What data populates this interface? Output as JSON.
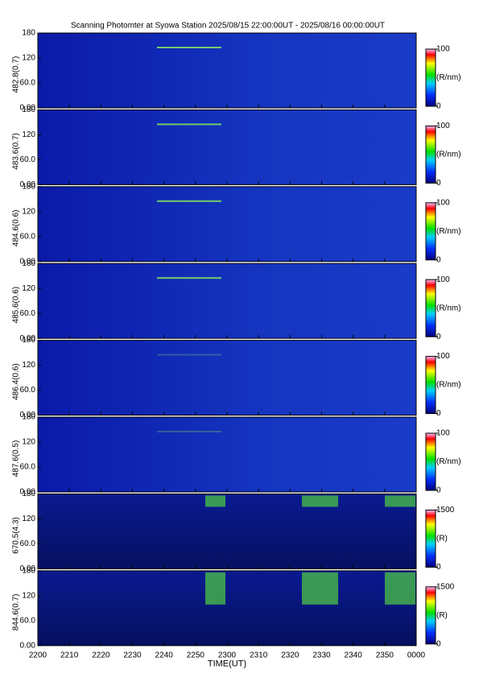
{
  "chart_data": {
    "type": "keogram",
    "title": "Scanning Photomter at Syowa Station 2025/08/15 22:00:00UT - 2025/08/16 00:00:00UT",
    "xlabel": "TIME(UT)",
    "xticks": [
      "2200",
      "2210",
      "2220",
      "2230",
      "2240",
      "2250",
      "2300",
      "2310",
      "2320",
      "2330",
      "2340",
      "2350",
      "0000"
    ],
    "ylim": [
      0,
      180
    ],
    "yticks": [
      {
        "value": 0,
        "label": "0.00"
      },
      {
        "value": 60,
        "label": "60.0"
      },
      120,
      180
    ],
    "panels": [
      {
        "ylabel": "482.8(0.7)",
        "clim": [
          0,
          100
        ],
        "cticks": [
          0,
          100
        ],
        "unit": "(R/nm)"
      },
      {
        "ylabel": "483.6(0.7)",
        "clim": [
          0,
          100
        ],
        "cticks": [
          0,
          100
        ],
        "unit": "(R/nm)"
      },
      {
        "ylabel": "484.6(0.6)",
        "clim": [
          0,
          100
        ],
        "cticks": [
          0,
          100
        ],
        "unit": "(R/nm)"
      },
      {
        "ylabel": "485.6(0.6)",
        "clim": [
          0,
          100
        ],
        "cticks": [
          0,
          100
        ],
        "unit": "(R/nm)"
      },
      {
        "ylabel": "486.4(0.6)",
        "clim": [
          0,
          100
        ],
        "cticks": [
          0,
          100
        ],
        "unit": "(R/nm)"
      },
      {
        "ylabel": "487.6(0.5)",
        "clim": [
          0,
          100
        ],
        "cticks": [
          0,
          100
        ],
        "unit": "(R/nm)"
      },
      {
        "ylabel": "670.5(4.3)",
        "clim": [
          0,
          1500
        ],
        "cticks": [
          0,
          1500
        ],
        "unit": "(R)"
      },
      {
        "ylabel": "844.6(0.7)",
        "clim": [
          0,
          1500
        ],
        "cticks": [
          0,
          1500
        ],
        "unit": "(R)"
      }
    ]
  }
}
